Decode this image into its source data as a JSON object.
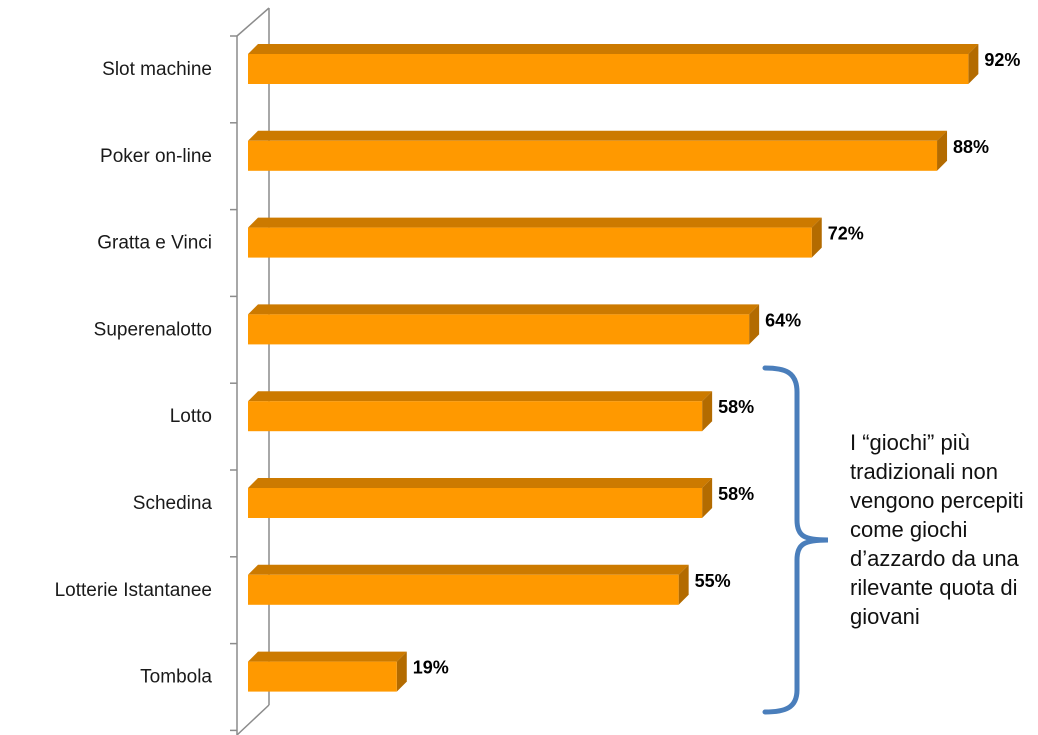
{
  "chart_data": {
    "type": "bar",
    "orientation": "horizontal",
    "style": "3d",
    "categories": [
      "Slot machine",
      "Poker on-line",
      "Gratta e Vinci",
      "Superenalotto",
      "Lotto",
      "Schedina",
      "Lotterie Istantanee",
      "Tombola"
    ],
    "values": [
      92,
      88,
      72,
      64,
      58,
      58,
      55,
      19
    ],
    "value_labels": [
      "92%",
      "88%",
      "72%",
      "64%",
      "58%",
      "58%",
      "55%",
      "19%"
    ],
    "unit": "%",
    "xlim": [
      0,
      100
    ],
    "grid": false,
    "colors": {
      "bar_front": "#ff9900",
      "bar_top": "#cc7a00",
      "bar_side": "#b36b00",
      "bracket": "#4a7ebb"
    }
  },
  "annotation": {
    "text": "I “giochi” più tradizionali non vengono percepiti come giochi d’azzardo da una rilevante quota di giovani"
  }
}
